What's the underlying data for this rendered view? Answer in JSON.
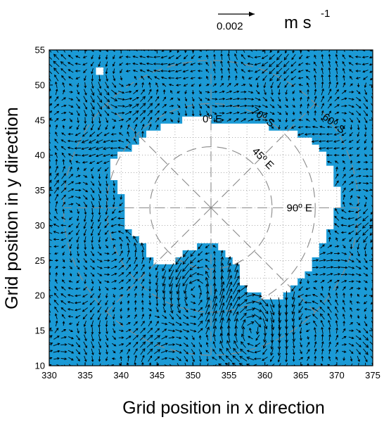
{
  "chart_data": {
    "type": "quiver",
    "title": "",
    "xlabel": "Grid position in x direction",
    "ylabel": "Grid position in y direction",
    "xlim": [
      330,
      375
    ],
    "ylim": [
      10,
      55
    ],
    "xticks": [
      330,
      335,
      340,
      345,
      350,
      355,
      360,
      365,
      370,
      375
    ],
    "yticks": [
      10,
      15,
      20,
      25,
      30,
      35,
      40,
      45,
      50,
      55
    ],
    "grid": "dotted",
    "ocean_color": "#1a9ad6",
    "land_color": "#ffffff",
    "vector_color": "#000000",
    "reference_vector": {
      "value_label": "0.002",
      "units": "m s",
      "units_exponent": "-1"
    },
    "polar_center": [
      352.5,
      32.5
    ],
    "latitude_circles": [
      {
        "label": "60º S",
        "radius": 20.5
      },
      {
        "label": "70º S",
        "radius": 14.5
      },
      {
        "label": "",
        "radius": 8.5
      }
    ],
    "meridian_labels": [
      {
        "label": "0º E",
        "angle_deg": 0
      },
      {
        "label": "45º E",
        "angle_deg": 45
      },
      {
        "label": "90º E",
        "angle_deg": 90
      }
    ],
    "land_rows": [
      {
        "y": 52,
        "x": [
          [
            337,
            337
          ]
        ]
      },
      {
        "y": 45,
        "x": [
          [
            349,
            352
          ]
        ]
      },
      {
        "y": 44,
        "x": [
          [
            346,
            360
          ]
        ]
      },
      {
        "y": 43,
        "x": [
          [
            344,
            364
          ]
        ]
      },
      {
        "y": 42,
        "x": [
          [
            343,
            366
          ]
        ]
      },
      {
        "y": 41,
        "x": [
          [
            342,
            367
          ]
        ]
      },
      {
        "y": 40,
        "x": [
          [
            340,
            368
          ]
        ]
      },
      {
        "y": 39,
        "x": [
          [
            339,
            368
          ]
        ]
      },
      {
        "y": 38,
        "x": [
          [
            339,
            369
          ]
        ]
      },
      {
        "y": 37,
        "x": [
          [
            339,
            369
          ]
        ]
      },
      {
        "y": 36,
        "x": [
          [
            340,
            369
          ]
        ]
      },
      {
        "y": 35,
        "x": [
          [
            340,
            370
          ]
        ]
      },
      {
        "y": 34,
        "x": [
          [
            341,
            370
          ]
        ]
      },
      {
        "y": 33,
        "x": [
          [
            341,
            370
          ]
        ]
      },
      {
        "y": 32,
        "x": [
          [
            341,
            369
          ]
        ]
      },
      {
        "y": 31,
        "x": [
          [
            341,
            369
          ]
        ]
      },
      {
        "y": 30,
        "x": [
          [
            341,
            369
          ]
        ]
      },
      {
        "y": 29,
        "x": [
          [
            342,
            368
          ]
        ]
      },
      {
        "y": 28,
        "x": [
          [
            343,
            368
          ]
        ]
      },
      {
        "y": 27,
        "x": [
          [
            344,
            350
          ],
          [
            354,
            367
          ]
        ]
      },
      {
        "y": 26,
        "x": [
          [
            344,
            348
          ],
          [
            355,
            367
          ]
        ]
      },
      {
        "y": 25,
        "x": [
          [
            345,
            347
          ],
          [
            356,
            366
          ]
        ]
      },
      {
        "y": 24,
        "x": [
          [
            357,
            366
          ]
        ]
      },
      {
        "y": 23,
        "x": [
          [
            357,
            365
          ]
        ]
      },
      {
        "y": 22,
        "x": [
          [
            357,
            364
          ]
        ]
      },
      {
        "y": 21,
        "x": [
          [
            358,
            363
          ]
        ]
      },
      {
        "y": 20,
        "x": [
          [
            360,
            362
          ]
        ]
      }
    ],
    "vortices": [
      {
        "x": 350.0,
        "y": 21.0,
        "radius": 5.0,
        "sense": "ccw",
        "strength": 1.6
      },
      {
        "x": 358.5,
        "y": 15.5,
        "radius": 5.5,
        "sense": "cw",
        "strength": 1.7
      },
      {
        "x": 334.0,
        "y": 43.0,
        "radius": 7.0,
        "sense": "cw",
        "strength": 0.3
      },
      {
        "x": 371.5,
        "y": 42.0,
        "radius": 7.0,
        "sense": "ccw",
        "strength": 0.3
      },
      {
        "x": 338.0,
        "y": 22.0,
        "radius": 7.0,
        "sense": "ccw",
        "strength": 0.3
      }
    ]
  }
}
